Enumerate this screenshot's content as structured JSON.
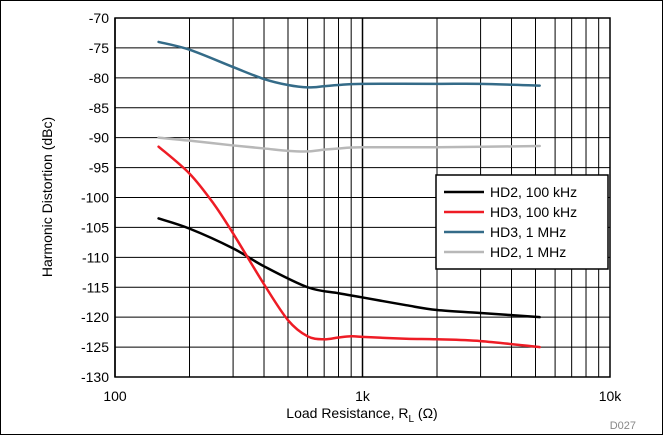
{
  "chart_data": {
    "type": "line",
    "title": "",
    "xlabel": "Load Resistance, R",
    "xlabel_sub": "L",
    "xlabel_unit": " (Ω)",
    "ylabel": "Harmonic Distortion (dBc)",
    "xscale": "log",
    "xlim": [
      100,
      10000
    ],
    "ylim": [
      -130,
      -70
    ],
    "x_ticks": [
      100,
      1000,
      10000
    ],
    "x_tick_labels": [
      "100",
      "1k",
      "10k"
    ],
    "y_ticks": [
      -70,
      -75,
      -80,
      -85,
      -90,
      -95,
      -100,
      -105,
      -110,
      -115,
      -120,
      -125,
      -130
    ],
    "grid": true,
    "legend_position": "center-right",
    "series": [
      {
        "name": "HD2, 100 kHz",
        "color": "#000000",
        "x": [
          150,
          200,
          300,
          400,
          600,
          800,
          1000,
          1500,
          2000,
          3000,
          5200
        ],
        "y": [
          -103.5,
          -105.2,
          -108.5,
          -111.5,
          -115,
          -116,
          -116.7,
          -118,
          -118.8,
          -119.3,
          -120
        ]
      },
      {
        "name": "HD3, 100 kHz",
        "color": "#ee1c25",
        "x": [
          150,
          200,
          250,
          300,
          400,
          500,
          600,
          700,
          800,
          900,
          1000,
          1500,
          2000,
          3000,
          5200
        ],
        "y": [
          -91.5,
          -96,
          -101,
          -106,
          -114.5,
          -120.5,
          -123.2,
          -123.7,
          -123.4,
          -123.2,
          -123.3,
          -123.6,
          -123.7,
          -124,
          -125
        ]
      },
      {
        "name": "HD3, 1 MHz",
        "color": "#346b88",
        "x": [
          150,
          200,
          300,
          400,
          500,
          600,
          700,
          800,
          1000,
          2000,
          3000,
          5200
        ],
        "y": [
          -74,
          -75.3,
          -78.2,
          -80.2,
          -81.2,
          -81.6,
          -81.4,
          -81.2,
          -81,
          -81,
          -81,
          -81.3
        ]
      },
      {
        "name": "HD2, 1 MHz",
        "color": "#b8b8b8",
        "x": [
          150,
          200,
          300,
          400,
          500,
          600,
          700,
          800,
          1000,
          2000,
          5200
        ],
        "y": [
          -90,
          -90.5,
          -91.3,
          -91.8,
          -92.2,
          -92.3,
          -92,
          -91.8,
          -91.6,
          -91.6,
          -91.4
        ]
      }
    ]
  },
  "figure_id": "D027"
}
